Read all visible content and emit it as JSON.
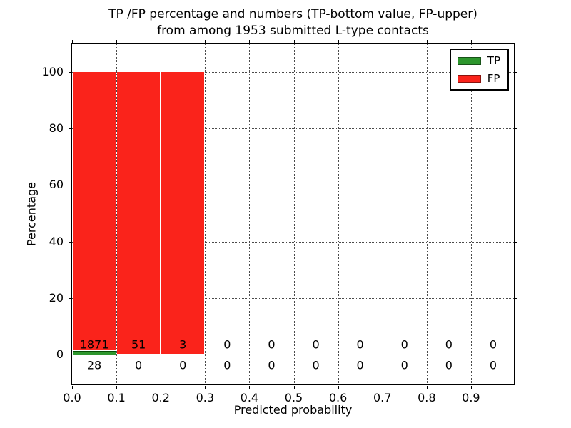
{
  "figure": {
    "title_line1": "TP /FP percentage and numbers (TP-bottom value, FP-upper)",
    "title_line2": "from among 1953 submitted L-type contacts"
  },
  "axes": {
    "xlabel": "Predicted probability",
    "ylabel": "Percentage",
    "xtick_labels": [
      "0.0",
      "0.1",
      "0.2",
      "0.3",
      "0.4",
      "0.5",
      "0.6",
      "0.7",
      "0.8",
      "0.9"
    ],
    "ytick_labels": [
      "0",
      "20",
      "40",
      "60",
      "80",
      "100"
    ]
  },
  "legend": {
    "items": [
      {
        "label": "TP",
        "color": "#2d962d"
      },
      {
        "label": "FP",
        "color": "#fa231b"
      }
    ]
  },
  "chart_data": {
    "type": "bar",
    "stacked": true,
    "title": "TP /FP percentage and numbers (TP-bottom value, FP-upper) from among 1953 submitted L-type contacts",
    "xlabel": "Predicted probability",
    "ylabel": "Percentage",
    "total_submitted": 1953,
    "bin_edges": [
      0.0,
      0.1,
      0.2,
      0.3,
      0.4,
      0.5,
      0.6,
      0.7,
      0.8,
      0.9,
      1.0
    ],
    "xticks": [
      0.0,
      0.1,
      0.2,
      0.3,
      0.4,
      0.5,
      0.6,
      0.7,
      0.8,
      0.9
    ],
    "yticks": [
      0,
      20,
      40,
      60,
      80,
      100
    ],
    "xlim": [
      0,
      1
    ],
    "ylim": [
      -11,
      110
    ],
    "grid": true,
    "grid_style": "dotted",
    "legend_position": "upper right",
    "series": [
      {
        "name": "TP",
        "color": "#2d962d",
        "counts": [
          28,
          0,
          0,
          0,
          0,
          0,
          0,
          0,
          0,
          0
        ],
        "percent": [
          1.47,
          0,
          0,
          0,
          0,
          0,
          0,
          0,
          0,
          0
        ],
        "count_label_y": -3.8
      },
      {
        "name": "FP",
        "color": "#fa231b",
        "counts": [
          1871,
          51,
          3,
          0,
          0,
          0,
          0,
          0,
          0,
          0
        ],
        "percent": [
          98.53,
          100,
          100,
          0,
          0,
          0,
          0,
          0,
          0,
          0
        ],
        "count_label_y": 3.5
      }
    ]
  }
}
